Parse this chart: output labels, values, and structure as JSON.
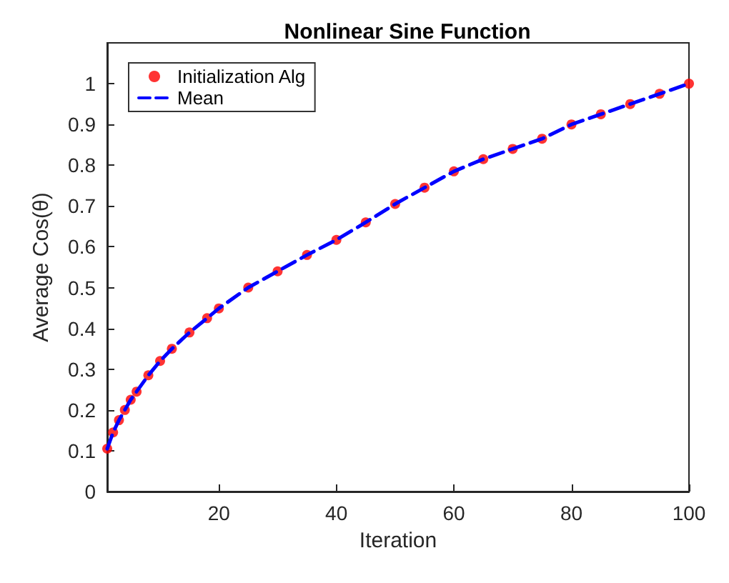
{
  "chart_data": {
    "type": "line",
    "title": "Nonlinear Sine Function",
    "xlabel": "Iteration",
    "ylabel": "Average Cos(θ)",
    "x": [
      1,
      2,
      3,
      4,
      5,
      6,
      8,
      10,
      12,
      15,
      18,
      20,
      25,
      30,
      35,
      40,
      45,
      50,
      55,
      60,
      65,
      70,
      75,
      80,
      85,
      90,
      95,
      100
    ],
    "series": [
      {
        "name": "Initialization Alg",
        "type": "scatter",
        "color": "#ff0000",
        "marker": "circle",
        "values": [
          0.105,
          0.145,
          0.175,
          0.2,
          0.225,
          0.245,
          0.285,
          0.32,
          0.35,
          0.39,
          0.425,
          0.449,
          0.5,
          0.54,
          0.58,
          0.617,
          0.66,
          0.705,
          0.745,
          0.785,
          0.815,
          0.84,
          0.865,
          0.9,
          0.925,
          0.95,
          0.975,
          1.0
        ]
      },
      {
        "name": "Mean",
        "color": "#0000ff",
        "line_style": "dashed",
        "marker": "none",
        "values": [
          0.105,
          0.145,
          0.175,
          0.2,
          0.225,
          0.245,
          0.285,
          0.32,
          0.35,
          0.39,
          0.425,
          0.449,
          0.5,
          0.54,
          0.58,
          0.617,
          0.66,
          0.705,
          0.745,
          0.785,
          0.815,
          0.84,
          0.865,
          0.9,
          0.925,
          0.95,
          0.975,
          1.0
        ]
      }
    ],
    "xlim": [
      1,
      100
    ],
    "xticks": [
      20,
      40,
      60,
      80,
      100
    ],
    "ylim": [
      0,
      1.1
    ],
    "yticks": [
      0,
      0.1,
      0.2,
      0.3,
      0.4,
      0.5,
      0.6,
      0.7,
      0.8,
      0.9,
      1
    ],
    "grid": false,
    "legend": "top left"
  }
}
